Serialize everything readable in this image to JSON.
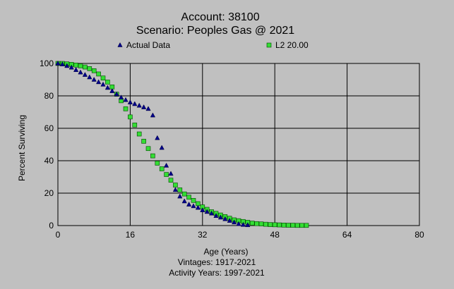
{
  "chart_data": {
    "type": "scatter",
    "title": "Account: 38100",
    "subtitle": "Scenario: Peoples Gas @ 2021",
    "xlabel": "Age (Years)",
    "ylabel": "Percent Surviving",
    "footer": [
      "Vintages: 1917-2021",
      "Activity Years: 1997-2021"
    ],
    "xlim": [
      0,
      80
    ],
    "ylim": [
      0,
      100
    ],
    "xticks": [
      0,
      16,
      32,
      48,
      64,
      80
    ],
    "yticks": [
      0,
      20,
      40,
      60,
      80,
      100
    ],
    "xtick_labels": [
      "0",
      "16",
      "32",
      "48",
      "64",
      "80"
    ],
    "ytick_labels": [
      "0",
      "20",
      "40",
      "60",
      "80",
      "100"
    ],
    "grid": true,
    "legend_placement": "top",
    "series": [
      {
        "name": "Actual Data",
        "marker": "triangle",
        "color": "#00008b",
        "x": [
          0,
          1,
          2,
          3,
          4,
          5,
          6,
          7,
          8,
          9,
          10,
          11,
          12,
          13,
          14,
          15,
          16,
          17,
          18,
          19,
          20,
          21,
          22,
          23,
          24,
          25,
          26,
          27,
          28,
          29,
          30,
          31,
          32,
          33,
          34,
          35,
          36,
          37,
          38,
          39,
          40,
          41,
          42
        ],
        "y": [
          100,
          99.5,
          98.5,
          97.5,
          96,
          94.5,
          93,
          91.5,
          90,
          88.5,
          87,
          85,
          83,
          81,
          79,
          77.5,
          76,
          75,
          74,
          73,
          72,
          68,
          54,
          48,
          37,
          32,
          22,
          18,
          15,
          13,
          12,
          11,
          9.5,
          8.5,
          7.5,
          6,
          5,
          4,
          3,
          2,
          1,
          0.5,
          0.3
        ]
      },
      {
        "name": "L2 20.00",
        "marker": "square",
        "color": "#33dd33",
        "x": [
          0,
          1,
          2,
          3,
          4,
          5,
          6,
          7,
          8,
          9,
          10,
          11,
          12,
          13,
          14,
          15,
          16,
          17,
          18,
          19,
          20,
          21,
          22,
          23,
          24,
          25,
          26,
          27,
          28,
          29,
          30,
          31,
          32,
          33,
          34,
          35,
          36,
          37,
          38,
          39,
          40,
          41,
          42,
          43,
          44,
          45,
          46,
          47,
          48,
          49,
          50,
          51,
          52,
          53,
          54,
          55
        ],
        "y": [
          100,
          100,
          99.7,
          99.4,
          99,
          98.5,
          97.8,
          96.8,
          95.5,
          93.5,
          91,
          88.5,
          85.5,
          81,
          77,
          72,
          67,
          62,
          56.5,
          52,
          47.5,
          43,
          38.5,
          35,
          31.5,
          28,
          25,
          22,
          19.5,
          17.5,
          15.5,
          13.5,
          11.5,
          10,
          8.5,
          7.5,
          6.5,
          5.5,
          4.5,
          3.5,
          3,
          2.5,
          2,
          1.5,
          1.2,
          1,
          0.8,
          0.6,
          0.5,
          0.4,
          0.3,
          0.2,
          0.2,
          0.1,
          0.1,
          0.1
        ]
      }
    ]
  }
}
